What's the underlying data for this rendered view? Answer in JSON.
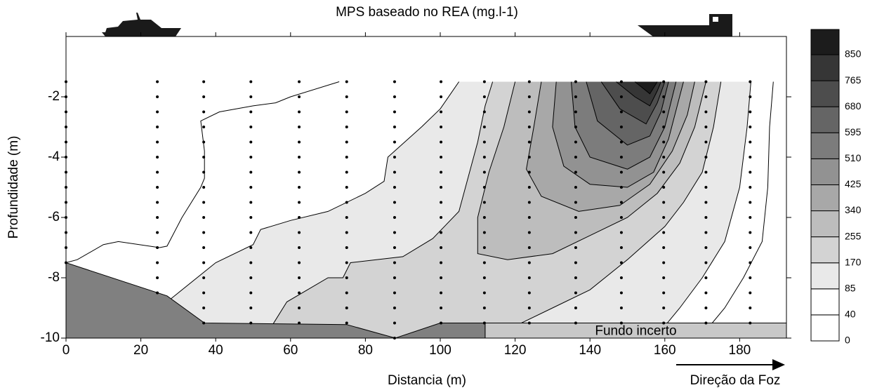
{
  "chart_data": {
    "type": "contour",
    "title": "MPS baseado no REA (mg.l-1)",
    "x_label": "Distancia (m)",
    "y_label": "Profundidade (m)",
    "flow_direction_label": "Direção da Foz",
    "xlim": [
      0,
      192.5
    ],
    "ylim": [
      -10,
      0
    ],
    "xticks": [
      0,
      20,
      40,
      60,
      80,
      100,
      120,
      140,
      160,
      180
    ],
    "yticks": [
      -10,
      -8,
      -6,
      -4,
      -2
    ],
    "colorbar": {
      "levels": [
        0,
        40,
        85,
        170,
        255,
        340,
        425,
        510,
        595,
        680,
        765,
        850
      ],
      "colors": [
        "#ffffff",
        "#ffffff",
        "#e9e9e9",
        "#d3d3d3",
        "#bdbdbd",
        "#a8a8a8",
        "#929292",
        "#7c7c7c",
        "#656565",
        "#4d4d4d",
        "#363636",
        "#1c1c1c"
      ]
    },
    "stations": {
      "x": [
        0,
        24.4,
        36.8,
        49.4,
        62.3,
        75,
        87.8,
        100.2,
        111.8,
        123.8,
        136.2,
        148.4,
        159.7,
        171,
        182.8
      ],
      "bottom": [
        -7.5,
        -8.5,
        -9.5,
        -9.5,
        -9.5,
        -9.5,
        -10,
        -9.5,
        -9.5,
        -9.5,
        -9.5,
        -9.5,
        -9.5,
        -9.5,
        -9.5
      ]
    },
    "sample_depths": [
      -1.5,
      -2,
      -2.5,
      -3,
      -3.5,
      -4,
      -4.5,
      -5,
      -5.5,
      -6,
      -6.5,
      -7,
      -7.5,
      -8,
      -8.5,
      -9,
      -9.5,
      -10
    ],
    "bottom_profile": {
      "x": [
        0,
        27,
        37,
        75,
        88,
        100,
        112
      ],
      "depth": [
        -7.5,
        -8.6,
        -9.5,
        -9.55,
        -10,
        -9.5,
        -9.5
      ],
      "color": "#808080"
    },
    "uncertain_bottom": {
      "label": "Fundo incerto",
      "x": [
        112,
        192.5
      ],
      "depth": -9.5,
      "color": "#c8c8c8"
    }
  }
}
